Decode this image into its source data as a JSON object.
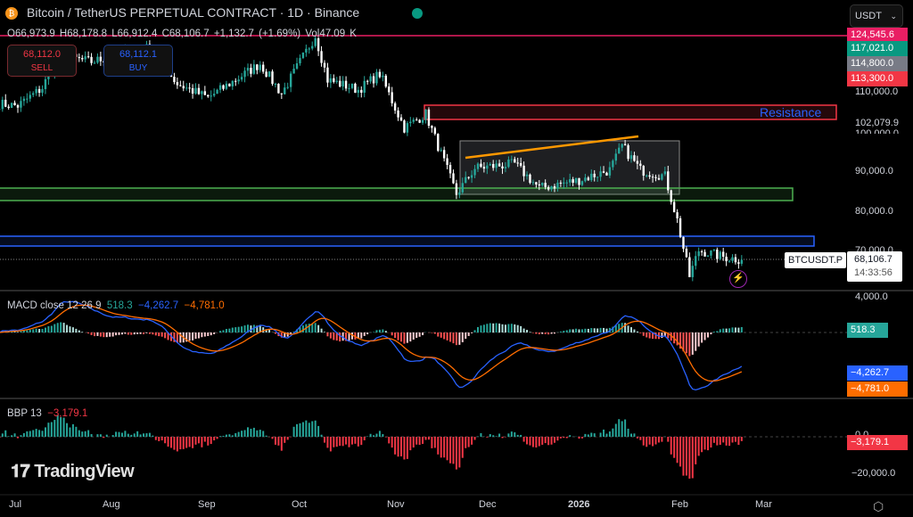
{
  "header": {
    "title": "Bitcoin / TetherUS PERPETUAL CONTRACT · 1D · Binance",
    "ohlc": {
      "o": "O66,973.9",
      "h": "H68,178.8",
      "l": "L66,912.4",
      "c": "C68,106.7",
      "chg": "+1,132.7 (+1.69%)",
      "vol": "Vol47.09 K"
    }
  },
  "trade": {
    "sell_price": "68,112.0",
    "sell_label": "SELL",
    "buy_price": "68,112.1",
    "buy_label": "BUY"
  },
  "currency": "USDT",
  "price_axis": {
    "labels": [
      "110,000.0",
      "90,000.0",
      "80,000.0",
      "70,000.0"
    ],
    "tags": [
      {
        "v": "124,545.6",
        "color": "#e91e63"
      },
      {
        "v": "117,021.0",
        "color": "#089981"
      },
      {
        "v": "114,800.0",
        "color": "#787b86"
      },
      {
        "v": "113,300.0",
        "color": "#f23645"
      }
    ],
    "level": "102,079.9",
    "level_hidden": "100,000.0",
    "symbol": "BTCUSDT.P",
    "last": "68,106.7",
    "countdown": "14:33:56"
  },
  "annotations": {
    "resistance": "Resistance"
  },
  "macd": {
    "title": "MACD close 12 26 9",
    "hist": "518.3",
    "macd": "−4,262.7",
    "signal": "−4,781.0",
    "axis": "4,000.0"
  },
  "bbp": {
    "title": "BBP 13",
    "value": "−3,179.1",
    "axis_zero": "0.0",
    "axis": "−20,000.0"
  },
  "time_axis": [
    "Jul",
    "Aug",
    "Sep",
    "Oct",
    "Nov",
    "Dec",
    "2026",
    "Feb",
    "Mar"
  ],
  "logo": "TradingView",
  "colors": {
    "up": "#26a69a",
    "down": "#ef5350",
    "macd": "#2962ff",
    "signal": "#ff6d00",
    "resistance": "#f23645",
    "support_green": "#4caf50",
    "support_blue": "#2962ff"
  },
  "chart_data": {
    "type": "candlestick",
    "title": "Bitcoin / TetherUS PERPETUAL CONTRACT · 1D · Binance",
    "approx_closes": [
      [
        "2025-06-25",
        107000
      ],
      [
        "2025-07-01",
        106500
      ],
      [
        "2025-07-09",
        111000
      ],
      [
        "2025-07-14",
        119000
      ],
      [
        "2025-07-25",
        117500
      ],
      [
        "2025-08-13",
        121000
      ],
      [
        "2025-08-22",
        112000
      ],
      [
        "2025-09-01",
        108500
      ],
      [
        "2025-09-18",
        117000
      ],
      [
        "2025-09-25",
        109500
      ],
      [
        "2025-10-06",
        124000
      ],
      [
        "2025-10-10",
        113000
      ],
      [
        "2025-10-20",
        110500
      ],
      [
        "2025-10-27",
        114500
      ],
      [
        "2025-11-04",
        101000
      ],
      [
        "2025-11-11",
        104500
      ],
      [
        "2025-11-17",
        92500
      ],
      [
        "2025-11-21",
        84500
      ],
      [
        "2025-11-27",
        91000
      ],
      [
        "2025-12-10",
        92000
      ],
      [
        "2025-12-18",
        86000
      ],
      [
        "2025-12-31",
        88000
      ],
      [
        "2026-01-10",
        90500
      ],
      [
        "2026-01-14",
        96500
      ],
      [
        "2026-01-20",
        90500
      ],
      [
        "2026-01-28",
        89000
      ],
      [
        "2026-02-01",
        78000
      ],
      [
        "2026-02-05",
        64000
      ],
      [
        "2026-02-08",
        70500
      ],
      [
        "2026-02-15",
        69000
      ],
      [
        "2026-02-22",
        68106.7
      ]
    ]
  }
}
